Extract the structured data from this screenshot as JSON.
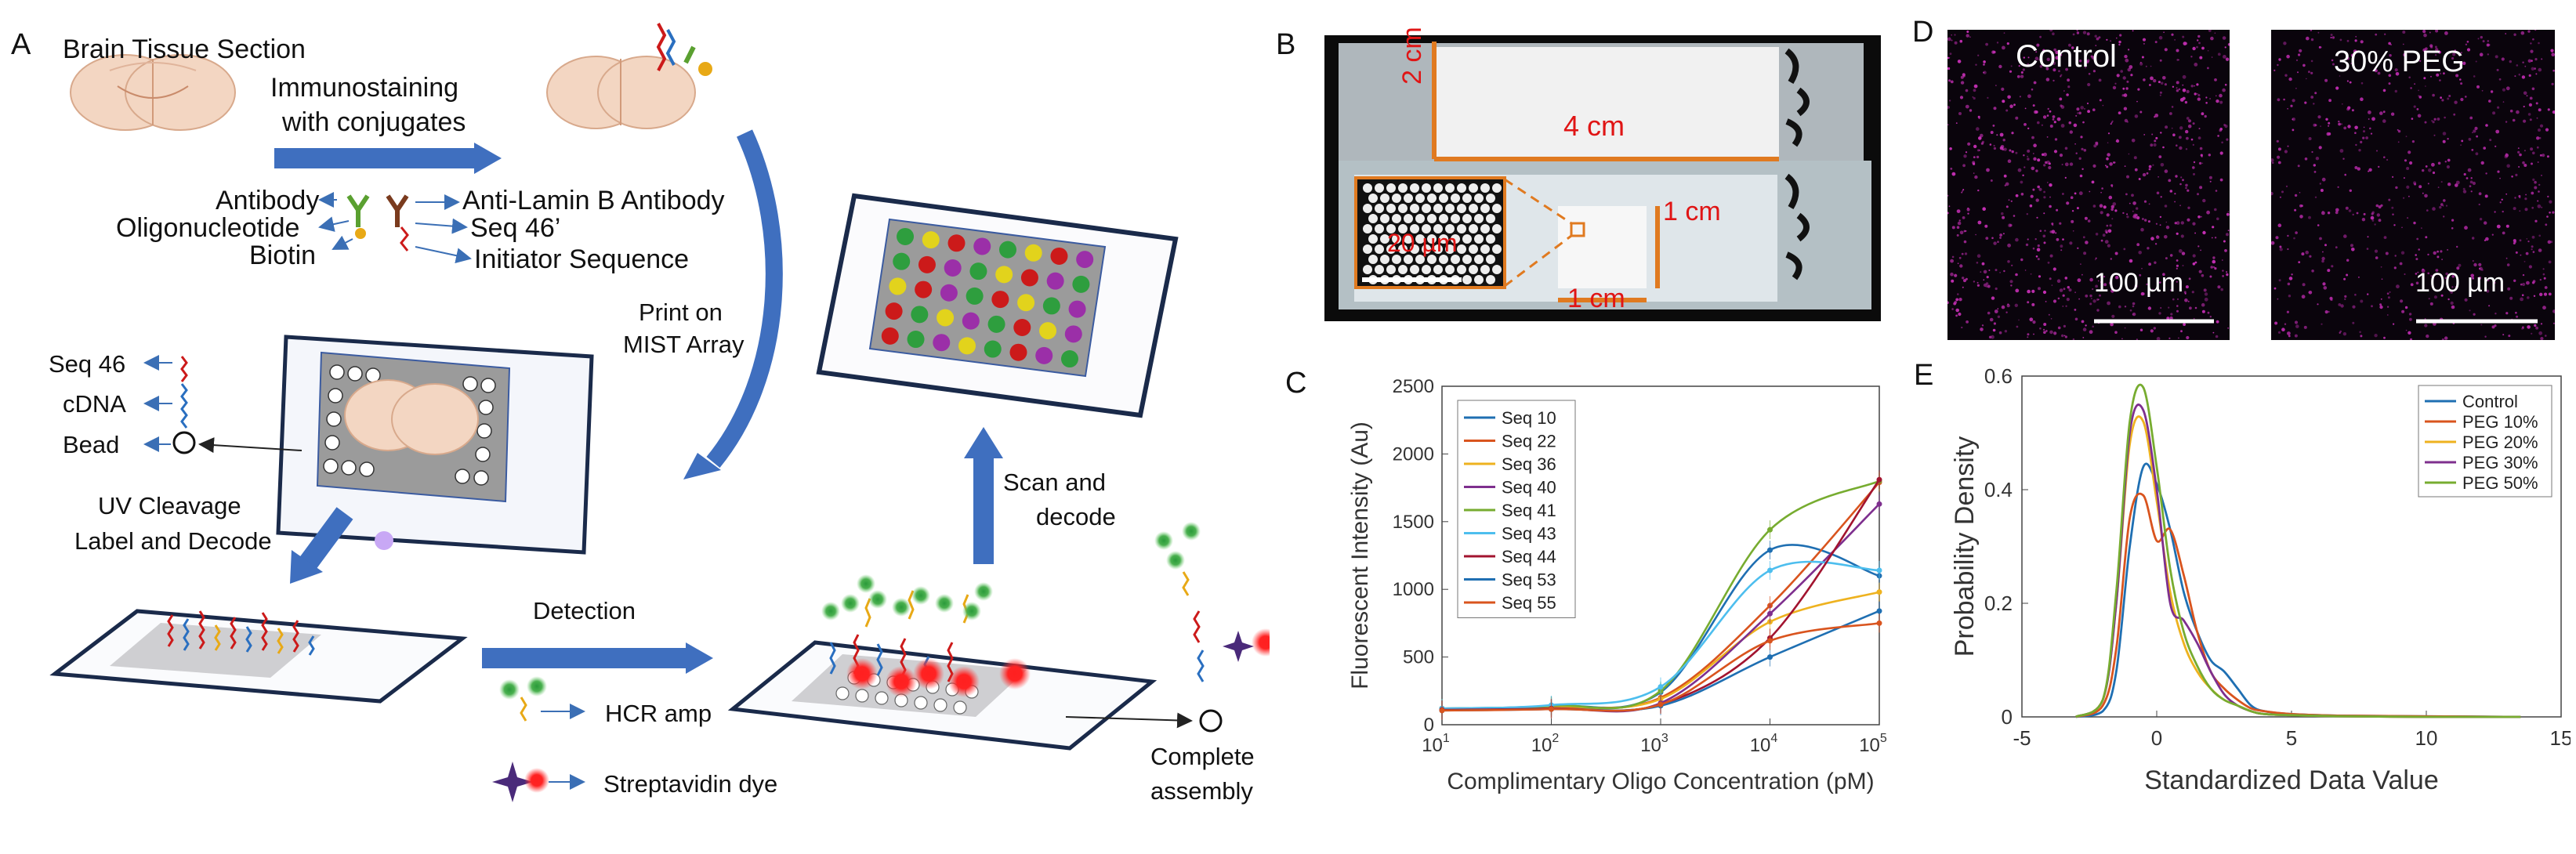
{
  "panels": {
    "a": "A",
    "b": "B",
    "c": "C",
    "d": "D",
    "e": "E"
  },
  "panel_a": {
    "brain_tissue": "Brain Tissue Section",
    "immunostaining_1": "Immunostaining",
    "immunostaining_2": "with conjugates",
    "antibody": "Antibody",
    "oligonucleotide": "Oligonucleotide",
    "biotin": "Biotin",
    "anti_lamin": "Anti-Lamin B Antibody",
    "seq46prime": "Seq 46’",
    "initiator": "Initiator Sequence",
    "print_1": "Print on",
    "print_2": "MIST Array",
    "seq46": "Seq 46",
    "cdna": "cDNA",
    "bead": "Bead",
    "uv_1": "UV Cleavage",
    "uv_2": "Label and Decode",
    "detection": "Detection",
    "hcr": "HCR amp",
    "strep": "Streptavidin dye",
    "scan_1": "Scan and",
    "scan_2": "decode",
    "complete_1": "Complete",
    "complete_2": "assembly",
    "array_dot_colors": [
      "#2e9e3e",
      "#e2d31c",
      "#cc1a1a",
      "#9b2fa8",
      "#2e9e3e",
      "#e2d31c",
      "#cc1a1a",
      "#9b2fa8",
      "#2e9e3e",
      "#cc1a1a",
      "#9b2fa8",
      "#2e9e3e",
      "#e2d31c",
      "#cc1a1a",
      "#9b2fa8",
      "#2e9e3e",
      "#e2d31c",
      "#cc1a1a",
      "#9b2fa8",
      "#2e9e3e",
      "#cc1a1a",
      "#e2d31c",
      "#2e9e3e",
      "#9b2fa8",
      "#cc1a1a",
      "#2e9e3e",
      "#e2d31c",
      "#9b2fa8",
      "#2e9e3e",
      "#cc1a1a",
      "#e2d31c",
      "#9b2fa8",
      "#cc1a1a",
      "#2e9e3e",
      "#9b2fa8",
      "#e2d31c",
      "#2e9e3e",
      "#cc1a1a",
      "#9b2fa8",
      "#2e9e3e"
    ]
  },
  "panel_b": {
    "dim_2cm": "2 cm",
    "dim_4cm": "4 cm",
    "dim_1cm_v": "1 cm",
    "dim_1cm_h": "1 cm",
    "scale": "20 µm"
  },
  "panel_d": {
    "control": "Control",
    "peg": "30% PEG",
    "scale_1": "100 µm",
    "scale_2": "100 µm"
  },
  "chart_data": [
    {
      "type": "line",
      "xscale": "log",
      "x": [
        10,
        100,
        1000,
        10000,
        100000
      ],
      "xlim": [
        10,
        100000
      ],
      "ylim": [
        0,
        2500
      ],
      "yticks": [
        0,
        500,
        1000,
        1500,
        2000,
        2500
      ],
      "xtick_base": "10",
      "xtick_exps": [
        "1",
        "2",
        "3",
        "4",
        "5"
      ],
      "xlabel": "Complimentary Oligo Concentration (pM)",
      "ylabel": "Fluorescent Intensity (Au)",
      "legend": "top-left",
      "series": [
        {
          "name": "Seq 10",
          "color": "#1f6fb2",
          "values": [
            120,
            140,
            240,
            1290,
            1100
          ]
        },
        {
          "name": "Seq 22",
          "color": "#d9541e",
          "values": [
            115,
            130,
            200,
            880,
            1790
          ]
        },
        {
          "name": "Seq 36",
          "color": "#eeb21f",
          "values": [
            110,
            125,
            190,
            760,
            980
          ]
        },
        {
          "name": "Seq 40",
          "color": "#7e2f8e",
          "values": [
            110,
            120,
            160,
            820,
            1630
          ]
        },
        {
          "name": "Seq 41",
          "color": "#77ac30",
          "values": [
            120,
            140,
            250,
            1440,
            1800
          ]
        },
        {
          "name": "Seq 43",
          "color": "#4dbeee",
          "values": [
            120,
            145,
            280,
            1140,
            1140
          ]
        },
        {
          "name": "Seq 44",
          "color": "#a2142f",
          "values": [
            110,
            120,
            150,
            640,
            1810
          ]
        },
        {
          "name": "Seq 53",
          "color": "#1f6fb2",
          "values": [
            105,
            115,
            140,
            500,
            840
          ]
        },
        {
          "name": "Seq 55",
          "color": "#d9541e",
          "values": [
            105,
            115,
            150,
            620,
            750
          ]
        }
      ]
    },
    {
      "type": "line",
      "xlim": [
        -5,
        15
      ],
      "ylim": [
        0,
        0.6
      ],
      "xticks": [
        -5,
        0,
        5,
        10,
        15
      ],
      "yticks": [
        0,
        0.2,
        0.4,
        0.6
      ],
      "xlabel": "Standardized Data Value",
      "ylabel": "Probability Density",
      "legend": "top-right",
      "series": [
        {
          "name": "Control",
          "color": "#1f6fb2",
          "x": [
            -3,
            -2,
            -1.5,
            -1,
            -0.5,
            0,
            0.5,
            1,
            1.5,
            2,
            2.5,
            3,
            3.5,
            4,
            5,
            7,
            10,
            13.5
          ],
          "y": [
            0,
            0.01,
            0.08,
            0.3,
            0.44,
            0.41,
            0.33,
            0.22,
            0.15,
            0.1,
            0.08,
            0.05,
            0.02,
            0.01,
            0.005,
            0.002,
            0.001,
            0
          ]
        },
        {
          "name": "PEG 10%",
          "color": "#d9541e",
          "x": [
            -3,
            -2,
            -1.5,
            -1,
            -0.5,
            0,
            0.5,
            1,
            1.5,
            2,
            2.5,
            3,
            3.5,
            4,
            5,
            7,
            10,
            13.5
          ],
          "y": [
            0,
            0.02,
            0.12,
            0.35,
            0.39,
            0.31,
            0.33,
            0.25,
            0.15,
            0.08,
            0.05,
            0.03,
            0.015,
            0.01,
            0.005,
            0.002,
            0.001,
            0
          ]
        },
        {
          "name": "PEG 20%",
          "color": "#eeb21f",
          "x": [
            -3,
            -2,
            -1.5,
            -1,
            -0.5,
            0,
            0.5,
            1,
            1.5,
            2,
            2.5,
            3,
            3.5,
            4,
            5,
            7,
            10,
            13.5
          ],
          "y": [
            0,
            0.03,
            0.2,
            0.48,
            0.52,
            0.38,
            0.22,
            0.13,
            0.08,
            0.05,
            0.03,
            0.02,
            0.01,
            0.005,
            0.003,
            0.001,
            0,
            0
          ]
        },
        {
          "name": "PEG 30%",
          "color": "#7e2f8e",
          "x": [
            -3,
            -2,
            -1.5,
            -1,
            -0.5,
            0,
            0.5,
            1,
            1.5,
            2,
            2.5,
            3,
            3.5,
            4,
            5,
            7,
            10,
            13.5
          ],
          "y": [
            0,
            0.03,
            0.2,
            0.5,
            0.54,
            0.4,
            0.2,
            0.17,
            0.13,
            0.08,
            0.04,
            0.02,
            0.01,
            0.005,
            0.003,
            0.001,
            0,
            0
          ]
        },
        {
          "name": "PEG 50%",
          "color": "#77ac30",
          "x": [
            -3,
            -2,
            -1.5,
            -1,
            -0.5,
            0,
            0.5,
            1,
            1.5,
            2,
            2.5,
            3,
            3.5,
            4,
            5,
            7,
            10,
            13.5
          ],
          "y": [
            0,
            0.03,
            0.22,
            0.52,
            0.58,
            0.44,
            0.26,
            0.15,
            0.09,
            0.05,
            0.03,
            0.02,
            0.01,
            0.005,
            0.003,
            0.001,
            0,
            0
          ]
        }
      ]
    }
  ]
}
